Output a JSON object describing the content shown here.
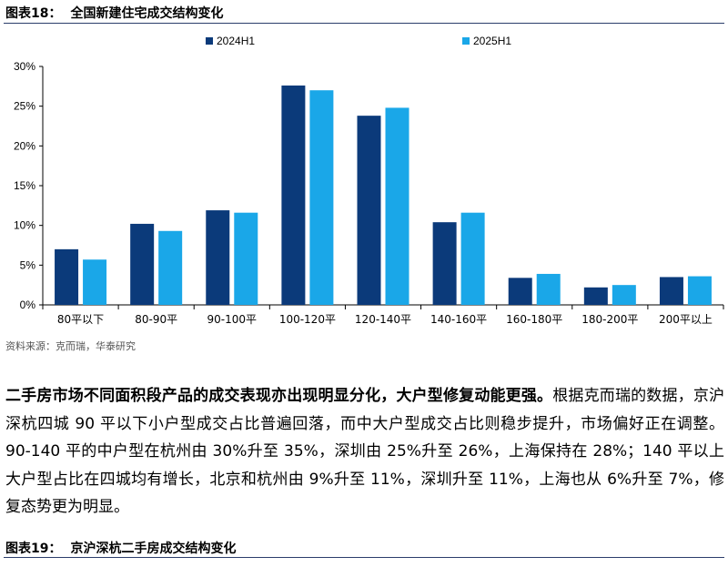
{
  "figure18": {
    "label": "图表18：",
    "title": "全国新建住宅成交结构变化"
  },
  "chart_data": {
    "type": "bar",
    "categories": [
      "80平以下",
      "80-90平",
      "90-100平",
      "100-120平",
      "120-140平",
      "140-160平",
      "160-180平",
      "180-200平",
      "200平以上"
    ],
    "series": [
      {
        "name": "2024H1",
        "color": "#0b3a7a",
        "values": [
          7.0,
          10.2,
          11.9,
          27.6,
          23.8,
          10.4,
          3.4,
          2.2,
          3.5
        ]
      },
      {
        "name": "2025H1",
        "color": "#1aa7e8",
        "values": [
          5.7,
          9.3,
          11.6,
          27.0,
          24.8,
          11.6,
          3.9,
          2.5,
          3.6
        ]
      }
    ],
    "yticks": [
      "0%",
      "5%",
      "10%",
      "15%",
      "20%",
      "25%",
      "30%"
    ],
    "ylim": [
      0,
      30
    ],
    "grid": false,
    "legend_position": "top"
  },
  "source": "资料来源：克而瑞，华泰研究",
  "paragraph": {
    "lead": "二手房市场不同面积段产品的成交表现亦出现明显分化，大户型修复动能更强。",
    "body": "根据克而瑞的数据，京沪深杭四城 90 平以下小户型成交占比普遍回落，而中大户型成交占比则稳步提升，市场偏好正在调整。90-140 平的中户型在杭州由 30%升至 35%，深圳由 25%升至 26%，上海保持在 28%；140 平以上大户型占比在四城均有增长，北京和杭州由 9%升至 11%，深圳升至 11%，上海也从 6%升至 7%，修复态势更为明显。"
  },
  "figure19": {
    "label": "图表19：",
    "title": "京沪深杭二手房成交结构变化"
  }
}
